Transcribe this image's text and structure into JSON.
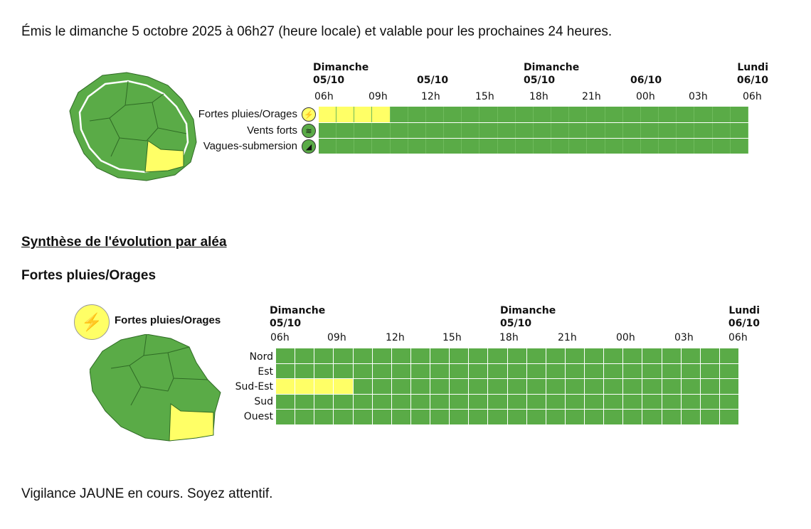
{
  "intro_text": "Émis le dimanche 5 octobre 2025 à 06h27 (heure locale) et valable pour les prochaines 24 heures.",
  "timeline_top": {
    "date_labels": [
      {
        "line1": "Dimanche",
        "line2": "05/10"
      },
      {
        "line1": "",
        "line2": "05/10"
      },
      {
        "line1": "Dimanche",
        "line2": "05/10"
      },
      {
        "line1": "",
        "line2": "06/10"
      },
      {
        "line1": "Lundi",
        "line2": "06/10"
      }
    ],
    "ticks": [
      "06h",
      "09h",
      "12h",
      "15h",
      "18h",
      "21h",
      "00h",
      "03h",
      "06h"
    ],
    "rows": [
      {
        "label": "Fortes pluies/Orages",
        "icon": "thunderstorm-rain-icon",
        "yellow_hours": 4
      },
      {
        "label": "Vents forts",
        "icon": "wind-icon",
        "yellow_hours": 0
      },
      {
        "label": "Vagues-submersion",
        "icon": "wave-icon",
        "yellow_hours": 0
      }
    ]
  },
  "synthesis_heading": "Synthèse de l'évolution par aléa",
  "hazard_heading": "Fortes pluies/Orages",
  "hazard_panel": {
    "legend_label": "Fortes pluies/Orages",
    "date_labels": [
      {
        "line1": "Dimanche",
        "line2": "05/10"
      },
      {
        "line1": "Dimanche",
        "line2": "05/10"
      },
      {
        "line1": "Lundi",
        "line2": "06/10"
      }
    ],
    "ticks": [
      "06h",
      "09h",
      "12h",
      "15h",
      "18h",
      "21h",
      "00h",
      "03h",
      "06h"
    ],
    "zones": [
      {
        "label": "Nord",
        "yellow_hours": 0
      },
      {
        "label": "Est",
        "yellow_hours": 0
      },
      {
        "label": "Sud-Est",
        "yellow_hours": 4
      },
      {
        "label": "Sud",
        "yellow_hours": 0
      },
      {
        "label": "Ouest",
        "yellow_hours": 0
      }
    ]
  },
  "footer_text": "Vigilance JAUNE en cours. Soyez attentif.",
  "colors": {
    "green": "#5aab47",
    "yellow": "#ffff66"
  }
}
